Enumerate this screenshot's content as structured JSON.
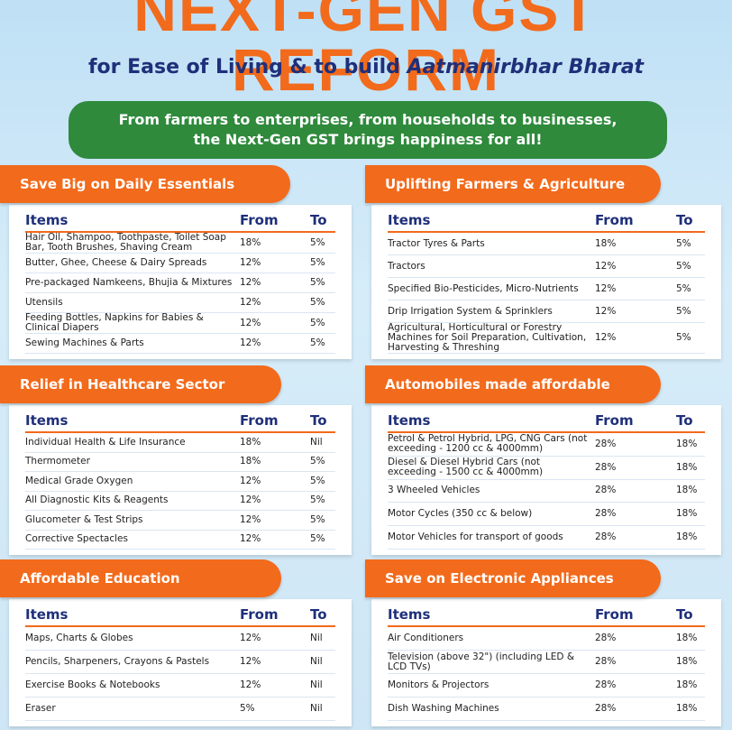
{
  "header": {
    "title": "NEXT-GEN GST REFORM",
    "subtitle": "for Ease of Living & to build",
    "subtitle_emphasis": "Aatmanirbhar Bharat"
  },
  "banner": {
    "lines": [
      "From farmers to enterprises, from households to businesses,",
      "the Next-Gen GST brings happiness for all!"
    ]
  },
  "panels": [
    {
      "title": "Save Big on Daily Essentials",
      "columns": [
        "Items",
        "From",
        "To"
      ],
      "rows": [
        [
          "Hair Oil, Shampoo, Toothpaste, Toilet Soap Bar, Tooth Brushes, Shaving Cream",
          "18%",
          "5%"
        ],
        [
          "Butter, Ghee, Cheese & Dairy Spreads",
          "12%",
          "5%"
        ],
        [
          "Pre-packaged Namkeens, Bhujia & Mixtures",
          "12%",
          "5%"
        ],
        [
          "Utensils",
          "12%",
          "5%"
        ],
        [
          "Feeding Bottles, Napkins for Babies & Clinical Diapers",
          "12%",
          "5%"
        ],
        [
          "Sewing Machines & Parts",
          "12%",
          "5%"
        ]
      ]
    },
    {
      "title": "Uplifting Farmers & Agriculture",
      "columns": [
        "Items",
        "From",
        "To"
      ],
      "rows": [
        [
          "Tractor Tyres & Parts",
          "18%",
          "5%"
        ],
        [
          "Tractors",
          "12%",
          "5%"
        ],
        [
          "Specified Bio-Pesticides, Micro-Nutrients",
          "12%",
          "5%"
        ],
        [
          "Drip Irrigation System & Sprinklers",
          "12%",
          "5%"
        ],
        [
          "Agricultural, Horticultural or Forestry Machines for Soil Preparation, Cultivation, Harvesting & Threshing",
          "12%",
          "5%"
        ]
      ]
    },
    {
      "title": "Relief in Healthcare Sector",
      "columns": [
        "Items",
        "From",
        "To"
      ],
      "rows": [
        [
          "Individual Health & Life Insurance",
          "18%",
          "Nil"
        ],
        [
          "Thermometer",
          "18%",
          "5%"
        ],
        [
          "Medical Grade Oxygen",
          "12%",
          "5%"
        ],
        [
          "All Diagnostic Kits & Reagents",
          "12%",
          "5%"
        ],
        [
          "Glucometer & Test Strips",
          "12%",
          "5%"
        ],
        [
          "Corrective Spectacles",
          "12%",
          "5%"
        ]
      ]
    },
    {
      "title": "Automobiles made affordable",
      "columns": [
        "Items",
        "From",
        "To"
      ],
      "rows": [
        [
          "Petrol & Petrol Hybrid, LPG, CNG Cars (not exceeding - 1200 cc & 4000mm)",
          "28%",
          "18%"
        ],
        [
          "Diesel & Diesel Hybrid Cars (not exceeding - 1500 cc & 4000mm)",
          "28%",
          "18%"
        ],
        [
          "3 Wheeled Vehicles",
          "28%",
          "18%"
        ],
        [
          "Motor Cycles (350 cc & below)",
          "28%",
          "18%"
        ],
        [
          "Motor Vehicles for transport of goods",
          "28%",
          "18%"
        ]
      ]
    },
    {
      "title": "Affordable Education",
      "columns": [
        "Items",
        "From",
        "To"
      ],
      "rows": [
        [
          "Maps, Charts & Globes",
          "12%",
          "Nil"
        ],
        [
          "Pencils, Sharpeners, Crayons & Pastels",
          "12%",
          "Nil"
        ],
        [
          "Exercise Books & Notebooks",
          "12%",
          "Nil"
        ],
        [
          "Eraser",
          "5%",
          "Nil"
        ]
      ]
    },
    {
      "title": "Save on Electronic Appliances",
      "columns": [
        "Items",
        "From",
        "To"
      ],
      "rows": [
        [
          "Air Conditioners",
          "28%",
          "18%"
        ],
        [
          "Television (above 32\") (including LED & LCD TVs)",
          "28%",
          "18%"
        ],
        [
          "Monitors & Projectors",
          "28%",
          "18%"
        ],
        [
          "Dish Washing Machines",
          "28%",
          "18%"
        ]
      ]
    }
  ]
}
